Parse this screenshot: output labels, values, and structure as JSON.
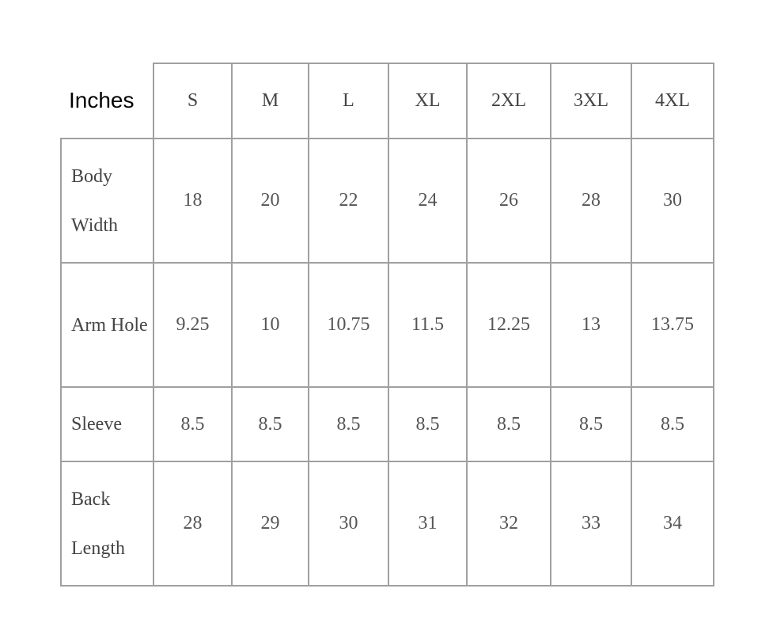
{
  "table": {
    "corner": "Inches",
    "header": [
      "S",
      "M",
      "L",
      "XL",
      "2XL",
      "3XL",
      "4XL"
    ],
    "rows": [
      {
        "label": "Body Width",
        "cells": [
          "18",
          "20",
          "22",
          "24",
          "26",
          "28",
          "30"
        ]
      },
      {
        "label": "Arm Hole",
        "cells": [
          "9.25",
          "10",
          "10.75",
          "11.5",
          "12.25",
          "13",
          "13.75"
        ]
      },
      {
        "label": "Sleeve",
        "cells": [
          "8.5",
          "8.5",
          "8.5",
          "8.5",
          "8.5",
          "8.5",
          "8.5"
        ]
      },
      {
        "label": "Back Length",
        "cells": [
          "28",
          "29",
          "30",
          "31",
          "32",
          "33",
          "34"
        ]
      }
    ]
  }
}
